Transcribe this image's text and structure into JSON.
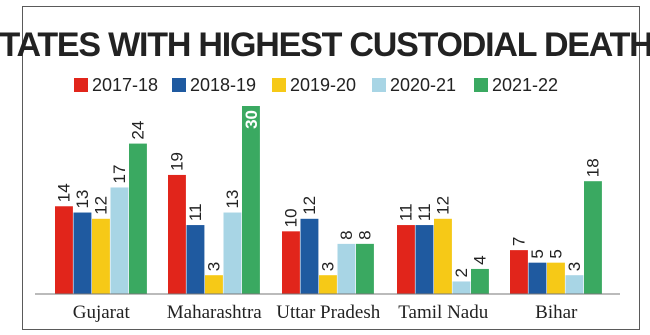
{
  "chart_data": {
    "type": "bar",
    "title": "STATES WITH HIGHEST CUSTODIAL DEATHS",
    "categories": [
      "Gujarat",
      "Maharashtra",
      "Uttar Pradesh",
      "Tamil Nadu",
      "Bihar"
    ],
    "series": [
      {
        "name": "2017-18",
        "color": "#e1251b",
        "values": [
          14,
          19,
          10,
          11,
          7
        ]
      },
      {
        "name": "2018-19",
        "color": "#1f5aa0",
        "values": [
          13,
          11,
          12,
          11,
          5
        ]
      },
      {
        "name": "2019-20",
        "color": "#f6c917",
        "values": [
          12,
          3,
          3,
          12,
          5
        ]
      },
      {
        "name": "2020-21",
        "color": "#a8d5e5",
        "values": [
          17,
          13,
          8,
          2,
          3
        ]
      },
      {
        "name": "2021-22",
        "color": "#3aa961",
        "values": [
          24,
          30,
          8,
          4,
          18
        ]
      }
    ],
    "ylim": [
      0,
      30
    ],
    "grid": false,
    "legend_position": "top"
  }
}
